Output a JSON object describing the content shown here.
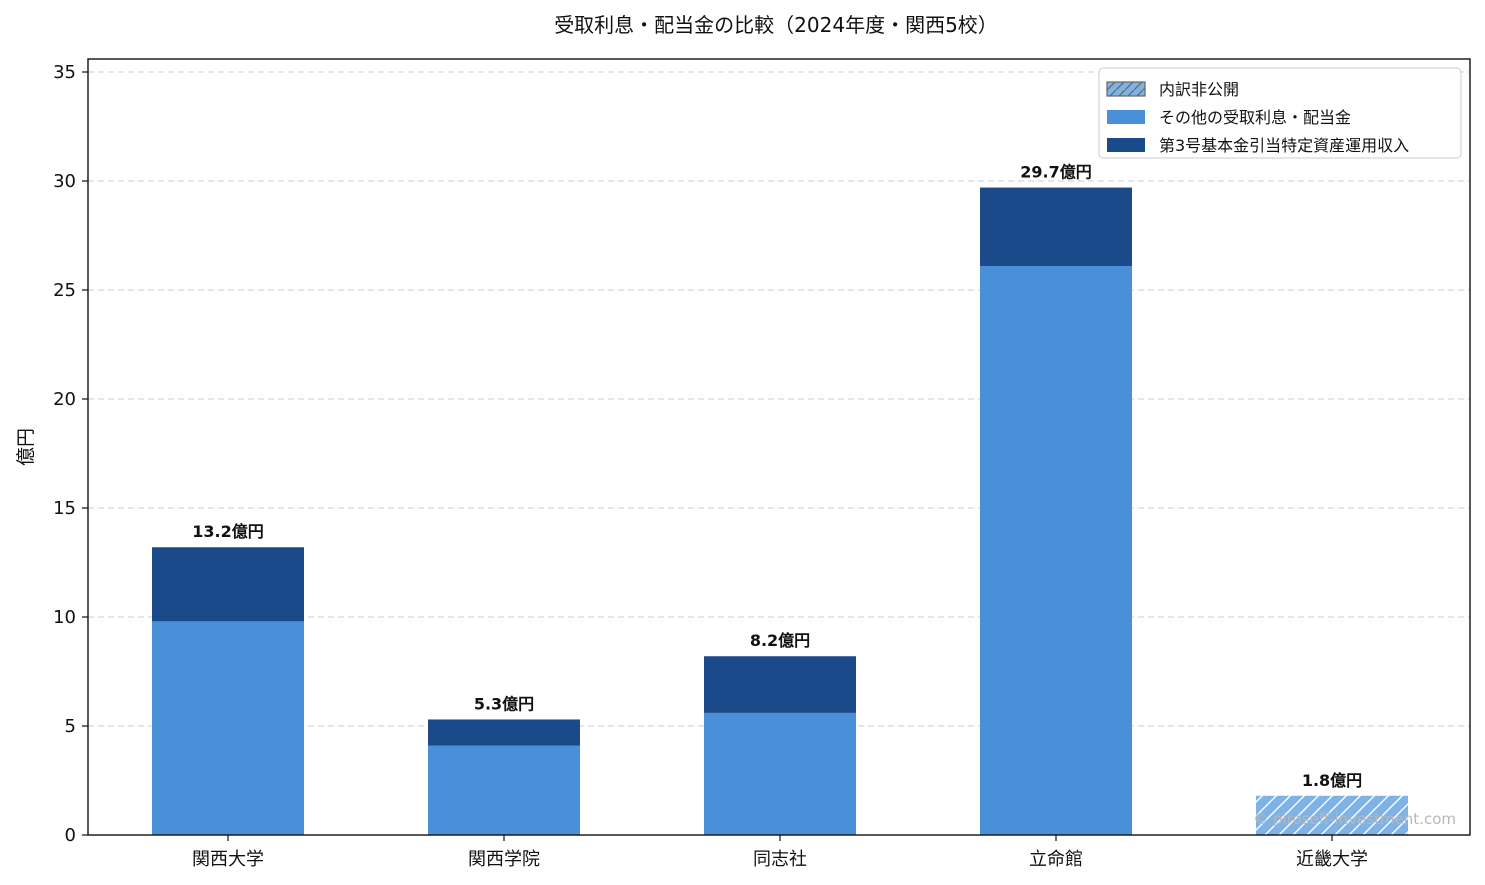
{
  "chart_data": {
    "type": "bar",
    "stacked": true,
    "title": "受取利息・配当金の比較（2024年度・関西5校）",
    "ylabel": "億円",
    "ylim": [
      0,
      35
    ],
    "yticks": [
      0,
      5,
      10,
      15,
      20,
      25,
      30,
      35
    ],
    "grid": "y-dashed",
    "legend_position": "top-right",
    "categories": [
      "関西大学",
      "関西学院",
      "同志社",
      "立命館",
      "近畿大学"
    ],
    "series": [
      {
        "name": "その他の受取利息・配当金",
        "color": "#4a90d9",
        "values": [
          9.8,
          4.1,
          5.6,
          26.1,
          null
        ]
      },
      {
        "name": "第3号基本金引当特定資産運用収入",
        "color": "#1a4a8a",
        "values": [
          3.4,
          1.2,
          2.6,
          3.6,
          null
        ]
      },
      {
        "name": "内訳非公開",
        "color": "#7fb2e5",
        "hatched": true,
        "values": [
          null,
          null,
          null,
          null,
          1.8
        ]
      }
    ],
    "legend_order": [
      "内訳非公開",
      "その他の受取利息・配当金",
      "第3号基本金引当特定資産運用収入"
    ],
    "totals": [
      13.2,
      5.3,
      8.2,
      29.7,
      1.8
    ],
    "total_labels": [
      "13.2億円",
      "5.3億円",
      "8.2億円",
      "29.7億円",
      "1.8億円"
    ]
  },
  "watermark": "© piroseff-investment.com"
}
